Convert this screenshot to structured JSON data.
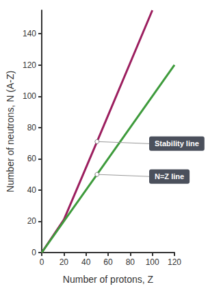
{
  "chart_data": {
    "type": "line",
    "x_label": "Number of protons, Z",
    "y_label": "Number of neutrons, N (A-Z)",
    "xlim": [
      0,
      120
    ],
    "xticks": [
      0,
      20,
      40,
      60,
      80,
      100,
      120
    ],
    "ylim": [
      0,
      155
    ],
    "yticks": [
      0,
      20,
      40,
      60,
      80,
      100,
      120,
      140
    ],
    "grid": false,
    "series": [
      {
        "name": "Stability line",
        "color": "#9c1f5f",
        "x": [
          0,
          20,
          50,
          100
        ],
        "values": [
          0,
          21,
          71,
          155
        ]
      },
      {
        "name": "N=Z line",
        "color": "#3e9b3c",
        "x": [
          0,
          20,
          50,
          120
        ],
        "values": [
          0,
          20,
          50,
          120
        ]
      }
    ],
    "annotations": [
      {
        "text": "Stability line",
        "x": 50,
        "y": 71
      },
      {
        "text": "N=Z line",
        "x": 50,
        "y": 50
      }
    ]
  }
}
